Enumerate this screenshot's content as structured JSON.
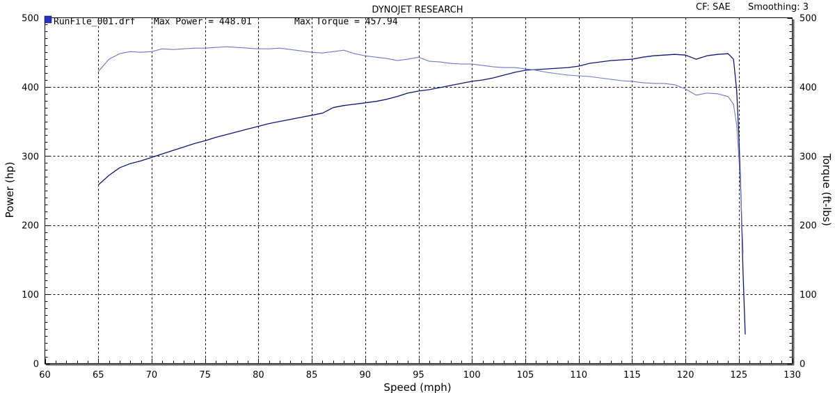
{
  "header": {
    "title": "DYNOJET RESEARCH",
    "cf_label": "CF: SAE",
    "smoothing_label": "Smoothing: 3"
  },
  "legend": {
    "run_name": "RunFile_001.drf",
    "max_power_text": "Max Power = 448.01",
    "max_torque_text": "Max Torque = 457.94",
    "swatch_color": "#2a33c0"
  },
  "colors": {
    "power": "#0c1672",
    "torque": "#6f76c6",
    "grid": "#000000"
  },
  "chart_data": {
    "type": "line",
    "title": "DYNOJET RESEARCH",
    "xlabel": "Speed (mph)",
    "ylabel_left": "Power (hp)",
    "ylabel_right": "Torque (ft-lbs)",
    "xlim": [
      60,
      130
    ],
    "ylim_left": [
      0,
      500
    ],
    "ylim_right": [
      0,
      500
    ],
    "xticks": [
      "60",
      "65",
      "70",
      "75",
      "80",
      "85",
      "90",
      "95",
      "100",
      "105",
      "110",
      "115",
      "120",
      "125",
      "130"
    ],
    "yticks_left": [
      "0",
      "100",
      "200",
      "300",
      "400",
      "500"
    ],
    "yticks_right": [
      "0",
      "100",
      "200",
      "300",
      "400",
      "500"
    ],
    "grid": true,
    "series": [
      {
        "name": "Power",
        "axis": "left",
        "x": [
          65,
          66,
          67,
          68,
          69,
          70,
          71,
          72,
          73,
          74,
          75,
          76,
          77,
          78,
          79,
          80,
          81,
          82,
          83,
          84,
          85,
          86,
          87,
          88,
          89,
          90,
          91,
          92,
          93,
          94,
          95,
          96,
          97,
          98,
          99,
          100,
          101,
          102,
          103,
          104,
          105,
          106,
          107,
          108,
          109,
          110,
          111,
          112,
          113,
          114,
          115,
          116,
          117,
          118,
          119,
          120,
          121,
          122,
          123,
          124,
          124.5,
          124.8,
          125.0,
          125.2,
          125.4,
          125.6
        ],
        "values": [
          258,
          272,
          283,
          289,
          293,
          298,
          303,
          308,
          313,
          318,
          322,
          327,
          331,
          335,
          339,
          343,
          347,
          350,
          353,
          356,
          359,
          362,
          370,
          373,
          375,
          377,
          379,
          382,
          386,
          391,
          394,
          396,
          399,
          402,
          405,
          408,
          410,
          413,
          417,
          421,
          424,
          425,
          426,
          427,
          428,
          430,
          434,
          436,
          438,
          439,
          440,
          443,
          445,
          446,
          447,
          446,
          440,
          445,
          447,
          448,
          440,
          395,
          330,
          240,
          130,
          42
        ]
      },
      {
        "name": "Torque",
        "axis": "right",
        "x": [
          65,
          66,
          67,
          68,
          69,
          70,
          71,
          72,
          73,
          74,
          75,
          76,
          77,
          78,
          79,
          80,
          81,
          82,
          83,
          84,
          85,
          86,
          87,
          88,
          89,
          90,
          91,
          92,
          93,
          94,
          95,
          96,
          97,
          98,
          99,
          100,
          101,
          102,
          103,
          104,
          105,
          106,
          107,
          108,
          109,
          110,
          111,
          112,
          113,
          114,
          115,
          116,
          117,
          118,
          119,
          120,
          121,
          122,
          123,
          124,
          124.5,
          124.8,
          125.0,
          125.2,
          125.4
        ],
        "values": [
          422,
          440,
          448,
          451,
          450,
          451,
          455,
          454,
          455,
          456,
          456,
          457,
          458,
          457,
          456,
          455,
          455,
          456,
          454,
          452,
          450,
          449,
          451,
          453,
          448,
          445,
          443,
          441,
          438,
          440,
          443,
          437,
          436,
          434,
          433,
          433,
          431,
          429,
          428,
          428,
          426,
          424,
          421,
          419,
          417,
          416,
          415,
          413,
          411,
          409,
          408,
          406,
          405,
          405,
          403,
          397,
          388,
          391,
          390,
          386,
          375,
          345,
          300,
          240,
          160
        ]
      }
    ]
  }
}
